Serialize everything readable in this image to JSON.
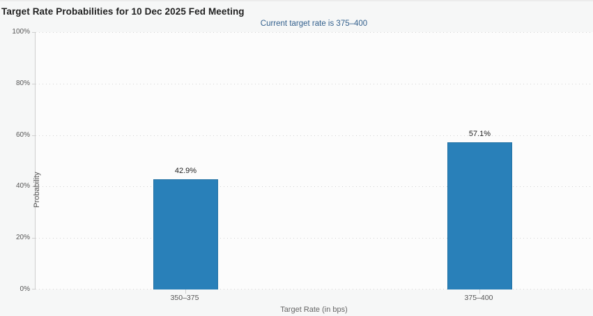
{
  "page": {
    "background": "#f6f7f7"
  },
  "chart_data": {
    "type": "bar",
    "title": "Target Rate Probabilities for 10 Dec 2025 Fed Meeting",
    "subtitle": "Current target rate is 375–400",
    "categories": [
      "350–375",
      "375–400"
    ],
    "values": [
      42.9,
      57.1
    ],
    "value_labels": [
      "42.9%",
      "57.1%"
    ],
    "xlabel": "Target Rate (in bps)",
    "ylabel": "Probability",
    "ylim": [
      0,
      100
    ],
    "yticks": [
      "0%",
      "20%",
      "40%",
      "60%",
      "80%",
      "100%"
    ],
    "grid": "horizontal-dotted",
    "legend": "none",
    "bar_color": "#2980b9",
    "subtitle_color": "#33608d"
  }
}
